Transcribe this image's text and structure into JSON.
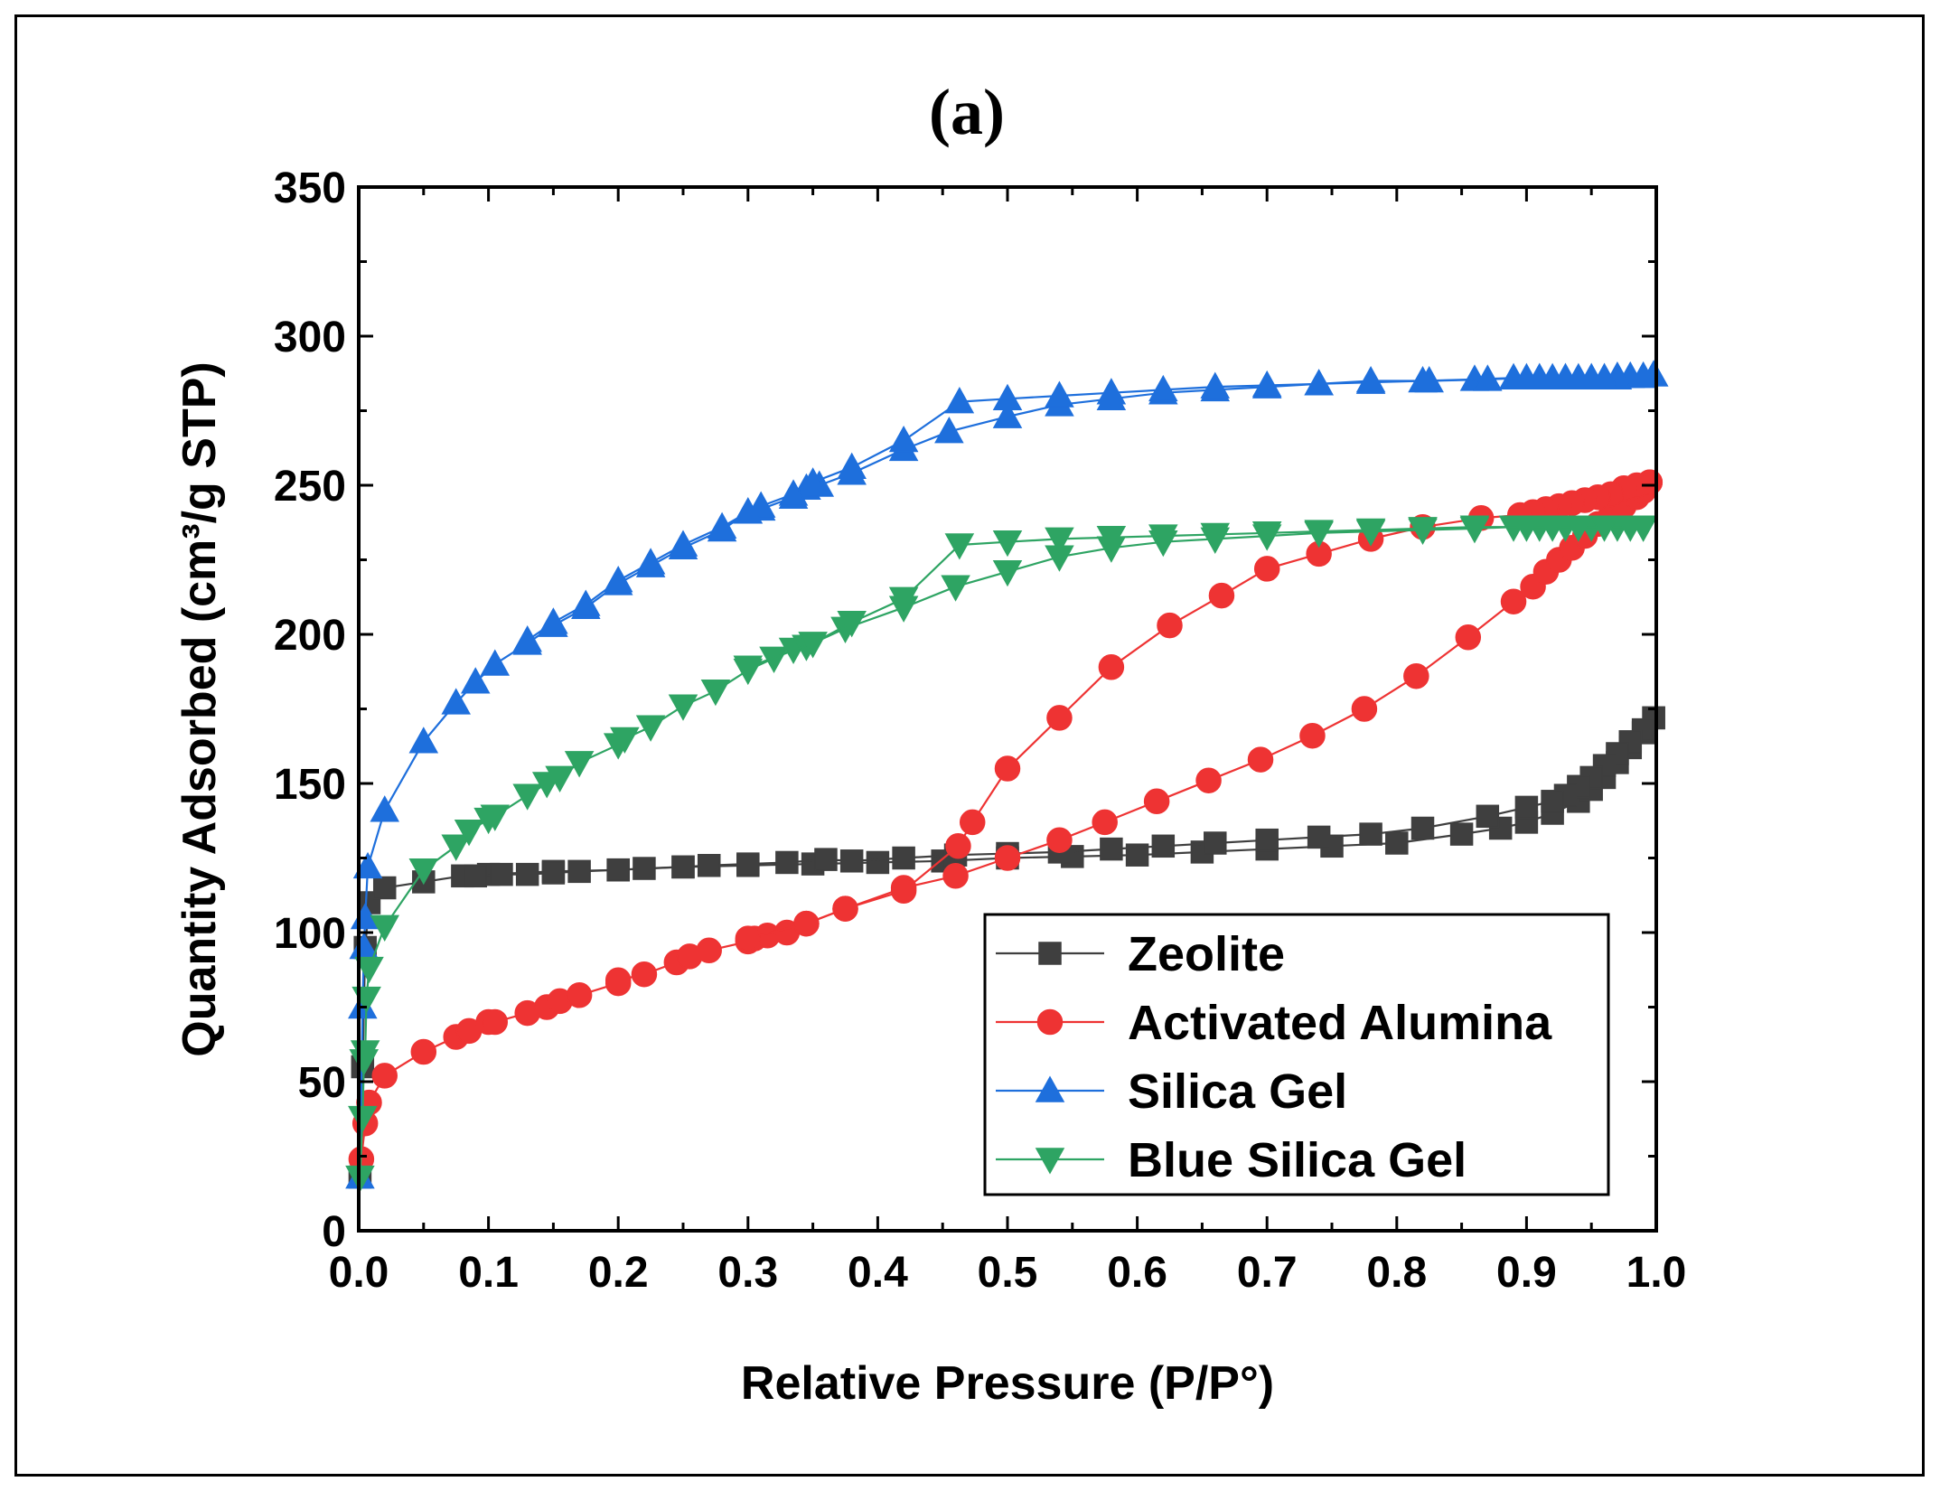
{
  "chart_data": {
    "type": "line",
    "title": "(a)",
    "xlabel": "Relative Pressure (P/P°)",
    "ylabel": "Quantity Adsorbed (cm³/g STP)",
    "xlim": [
      0,
      1
    ],
    "ylim": [
      0,
      350
    ],
    "xticks": [
      "0.0",
      "0.1",
      "0.2",
      "0.3",
      "0.4",
      "0.5",
      "0.6",
      "0.7",
      "0.8",
      "0.9",
      "1.0"
    ],
    "yticks": [
      "0",
      "50",
      "100",
      "150",
      "200",
      "250",
      "300",
      "350"
    ],
    "legend_position": "lower-right",
    "series": [
      {
        "name": "Zeolite",
        "color": "#3f3f3f",
        "marker": "square",
        "adsorption": [
          [
            0.001,
            18
          ],
          [
            0.003,
            55
          ],
          [
            0.005,
            95
          ],
          [
            0.008,
            110
          ],
          [
            0.02,
            115
          ],
          [
            0.05,
            117
          ],
          [
            0.08,
            119
          ],
          [
            0.1,
            119.5
          ],
          [
            0.15,
            120.5
          ],
          [
            0.2,
            121
          ],
          [
            0.25,
            122
          ],
          [
            0.3,
            122.5
          ],
          [
            0.35,
            123
          ],
          [
            0.4,
            123.5
          ],
          [
            0.45,
            124
          ],
          [
            0.5,
            125
          ],
          [
            0.55,
            125.5
          ],
          [
            0.6,
            126
          ],
          [
            0.65,
            127
          ],
          [
            0.7,
            128
          ],
          [
            0.75,
            129
          ],
          [
            0.8,
            130
          ],
          [
            0.85,
            133
          ],
          [
            0.88,
            135
          ],
          [
            0.9,
            137
          ],
          [
            0.92,
            140
          ],
          [
            0.94,
            144
          ],
          [
            0.95,
            148
          ],
          [
            0.96,
            152
          ],
          [
            0.97,
            157
          ],
          [
            0.98,
            162
          ],
          [
            0.99,
            167
          ],
          [
            0.998,
            172
          ]
        ],
        "desorption": [
          [
            0.998,
            172
          ],
          [
            0.99,
            168
          ],
          [
            0.98,
            164
          ],
          [
            0.97,
            160
          ],
          [
            0.96,
            156
          ],
          [
            0.95,
            152
          ],
          [
            0.94,
            149
          ],
          [
            0.93,
            146
          ],
          [
            0.92,
            144
          ],
          [
            0.9,
            142
          ],
          [
            0.87,
            139
          ],
          [
            0.82,
            135
          ],
          [
            0.78,
            133
          ],
          [
            0.74,
            132
          ],
          [
            0.7,
            131
          ],
          [
            0.66,
            130
          ],
          [
            0.62,
            129
          ],
          [
            0.58,
            128
          ],
          [
            0.54,
            127
          ],
          [
            0.5,
            126.5
          ],
          [
            0.46,
            126
          ],
          [
            0.42,
            125
          ],
          [
            0.38,
            124
          ],
          [
            0.36,
            124.5
          ],
          [
            0.33,
            123.5
          ],
          [
            0.3,
            123
          ],
          [
            0.27,
            122.5
          ],
          [
            0.25,
            122
          ],
          [
            0.22,
            121.5
          ],
          [
            0.2,
            121
          ],
          [
            0.17,
            120.5
          ],
          [
            0.15,
            120
          ],
          [
            0.13,
            119.5
          ],
          [
            0.11,
            119.5
          ],
          [
            0.09,
            119
          ]
        ]
      },
      {
        "name": "Activated Alumina",
        "color": "#ee3333",
        "marker": "circle",
        "adsorption": [
          [
            0.002,
            24
          ],
          [
            0.005,
            36
          ],
          [
            0.008,
            43
          ],
          [
            0.02,
            52
          ],
          [
            0.05,
            60
          ],
          [
            0.075,
            65
          ],
          [
            0.085,
            67
          ],
          [
            0.1,
            70
          ],
          [
            0.105,
            70
          ],
          [
            0.13,
            73
          ],
          [
            0.145,
            75
          ],
          [
            0.155,
            77
          ],
          [
            0.17,
            79
          ],
          [
            0.2,
            83
          ],
          [
            0.2,
            84
          ],
          [
            0.22,
            86
          ],
          [
            0.245,
            90
          ],
          [
            0.255,
            92
          ],
          [
            0.27,
            94
          ],
          [
            0.3,
            97
          ],
          [
            0.305,
            98
          ],
          [
            0.315,
            99
          ],
          [
            0.33,
            100
          ],
          [
            0.345,
            103
          ],
          [
            0.375,
            108
          ],
          [
            0.42,
            115
          ],
          [
            0.46,
            119
          ],
          [
            0.5,
            125
          ],
          [
            0.54,
            131
          ],
          [
            0.575,
            137
          ],
          [
            0.615,
            144
          ],
          [
            0.655,
            151
          ],
          [
            0.695,
            158
          ],
          [
            0.735,
            166
          ],
          [
            0.775,
            175
          ],
          [
            0.815,
            186
          ],
          [
            0.855,
            199
          ],
          [
            0.89,
            211
          ],
          [
            0.905,
            216
          ],
          [
            0.915,
            221
          ],
          [
            0.925,
            225
          ],
          [
            0.935,
            229
          ],
          [
            0.945,
            233
          ],
          [
            0.955,
            237
          ],
          [
            0.965,
            240
          ],
          [
            0.975,
            243
          ],
          [
            0.985,
            246
          ],
          [
            0.99,
            248
          ],
          [
            0.995,
            251
          ]
        ],
        "desorption": [
          [
            0.995,
            251
          ],
          [
            0.985,
            250
          ],
          [
            0.975,
            249
          ],
          [
            0.965,
            247
          ],
          [
            0.955,
            246
          ],
          [
            0.945,
            245
          ],
          [
            0.935,
            244
          ],
          [
            0.925,
            243
          ],
          [
            0.915,
            242
          ],
          [
            0.905,
            241
          ],
          [
            0.895,
            240
          ],
          [
            0.865,
            239
          ],
          [
            0.82,
            236
          ],
          [
            0.78,
            232
          ],
          [
            0.74,
            227
          ],
          [
            0.7,
            222
          ],
          [
            0.665,
            213
          ],
          [
            0.625,
            203
          ],
          [
            0.58,
            189
          ],
          [
            0.54,
            172
          ],
          [
            0.5,
            155
          ],
          [
            0.473,
            137
          ],
          [
            0.462,
            129
          ],
          [
            0.42,
            114
          ],
          [
            0.375,
            108
          ],
          [
            0.345,
            103
          ],
          [
            0.3,
            98
          ]
        ]
      },
      {
        "name": "Silica Gel",
        "color": "#1e6fdc",
        "marker": "triangle-up",
        "adsorption": [
          [
            0.001,
            18
          ],
          [
            0.003,
            75
          ],
          [
            0.004,
            95
          ],
          [
            0.005,
            105
          ],
          [
            0.007,
            122
          ],
          [
            0.02,
            141
          ],
          [
            0.05,
            164
          ],
          [
            0.075,
            177
          ],
          [
            0.09,
            184
          ],
          [
            0.105,
            190
          ],
          [
            0.13,
            197
          ],
          [
            0.15,
            203
          ],
          [
            0.175,
            209
          ],
          [
            0.2,
            217
          ],
          [
            0.225,
            223
          ],
          [
            0.25,
            229
          ],
          [
            0.28,
            235
          ],
          [
            0.3,
            241
          ],
          [
            0.31,
            242
          ],
          [
            0.335,
            246
          ],
          [
            0.345,
            249
          ],
          [
            0.355,
            250
          ],
          [
            0.38,
            254
          ],
          [
            0.42,
            262
          ],
          [
            0.455,
            268
          ],
          [
            0.5,
            273
          ],
          [
            0.54,
            277
          ],
          [
            0.58,
            279
          ],
          [
            0.62,
            281
          ],
          [
            0.66,
            282
          ],
          [
            0.7,
            283
          ],
          [
            0.74,
            284
          ],
          [
            0.78,
            284.5
          ],
          [
            0.82,
            285
          ],
          [
            0.86,
            285.5
          ],
          [
            0.89,
            286
          ],
          [
            0.91,
            286
          ],
          [
            0.93,
            286
          ],
          [
            0.95,
            286
          ],
          [
            0.96,
            286
          ],
          [
            0.97,
            286.5
          ],
          [
            0.98,
            286.5
          ],
          [
            0.99,
            286.5
          ],
          [
            0.998,
            287
          ]
        ],
        "desorption": [
          [
            0.998,
            287
          ],
          [
            0.99,
            286.5
          ],
          [
            0.98,
            286.5
          ],
          [
            0.97,
            286
          ],
          [
            0.96,
            286
          ],
          [
            0.95,
            286
          ],
          [
            0.94,
            286
          ],
          [
            0.93,
            286
          ],
          [
            0.92,
            286
          ],
          [
            0.91,
            286
          ],
          [
            0.9,
            286
          ],
          [
            0.87,
            285.5
          ],
          [
            0.825,
            285
          ],
          [
            0.78,
            285
          ],
          [
            0.74,
            284
          ],
          [
            0.7,
            283.5
          ],
          [
            0.66,
            283
          ],
          [
            0.62,
            282
          ],
          [
            0.58,
            281
          ],
          [
            0.54,
            280
          ],
          [
            0.5,
            279
          ],
          [
            0.463,
            278
          ],
          [
            0.42,
            265
          ],
          [
            0.38,
            256
          ],
          [
            0.35,
            251
          ],
          [
            0.335,
            247
          ],
          [
            0.31,
            243
          ],
          [
            0.3,
            241
          ],
          [
            0.28,
            236
          ],
          [
            0.25,
            230
          ],
          [
            0.225,
            224
          ],
          [
            0.2,
            218
          ],
          [
            0.175,
            210
          ],
          [
            0.15,
            204
          ],
          [
            0.13,
            198
          ]
        ]
      },
      {
        "name": "Blue Silica Gel",
        "color": "#2ea463",
        "marker": "triangle-down",
        "adsorption": [
          [
            0.001,
            18
          ],
          [
            0.003,
            38
          ],
          [
            0.004,
            57
          ],
          [
            0.005,
            60
          ],
          [
            0.006,
            78
          ],
          [
            0.008,
            88
          ],
          [
            0.02,
            102
          ],
          [
            0.05,
            121
          ],
          [
            0.075,
            129
          ],
          [
            0.085,
            134
          ],
          [
            0.1,
            138
          ],
          [
            0.105,
            139
          ],
          [
            0.13,
            146
          ],
          [
            0.145,
            150
          ],
          [
            0.155,
            152
          ],
          [
            0.17,
            157
          ],
          [
            0.2,
            163
          ],
          [
            0.205,
            165
          ],
          [
            0.225,
            169
          ],
          [
            0.25,
            176
          ],
          [
            0.275,
            181
          ],
          [
            0.3,
            188
          ],
          [
            0.32,
            192
          ],
          [
            0.335,
            195
          ],
          [
            0.345,
            196
          ],
          [
            0.375,
            202
          ],
          [
            0.42,
            209
          ],
          [
            0.46,
            216
          ],
          [
            0.5,
            221
          ],
          [
            0.54,
            226
          ],
          [
            0.58,
            229
          ],
          [
            0.62,
            231
          ],
          [
            0.66,
            232
          ],
          [
            0.7,
            233
          ],
          [
            0.74,
            234
          ],
          [
            0.78,
            234.5
          ],
          [
            0.82,
            235
          ],
          [
            0.86,
            235.5
          ],
          [
            0.89,
            236
          ],
          [
            0.91,
            236
          ],
          [
            0.93,
            236
          ],
          [
            0.95,
            236
          ],
          [
            0.97,
            236
          ],
          [
            0.99,
            236
          ]
        ],
        "desorption": [
          [
            0.99,
            236
          ],
          [
            0.98,
            236
          ],
          [
            0.96,
            236
          ],
          [
            0.94,
            236
          ],
          [
            0.92,
            236
          ],
          [
            0.9,
            236
          ],
          [
            0.86,
            236
          ],
          [
            0.82,
            235.5
          ],
          [
            0.78,
            235
          ],
          [
            0.74,
            234.5
          ],
          [
            0.7,
            234
          ],
          [
            0.66,
            233.5
          ],
          [
            0.62,
            233
          ],
          [
            0.58,
            232.5
          ],
          [
            0.54,
            232
          ],
          [
            0.5,
            231
          ],
          [
            0.463,
            230
          ],
          [
            0.42,
            212
          ],
          [
            0.38,
            204
          ],
          [
            0.35,
            197
          ],
          [
            0.3,
            189
          ]
        ]
      }
    ]
  }
}
